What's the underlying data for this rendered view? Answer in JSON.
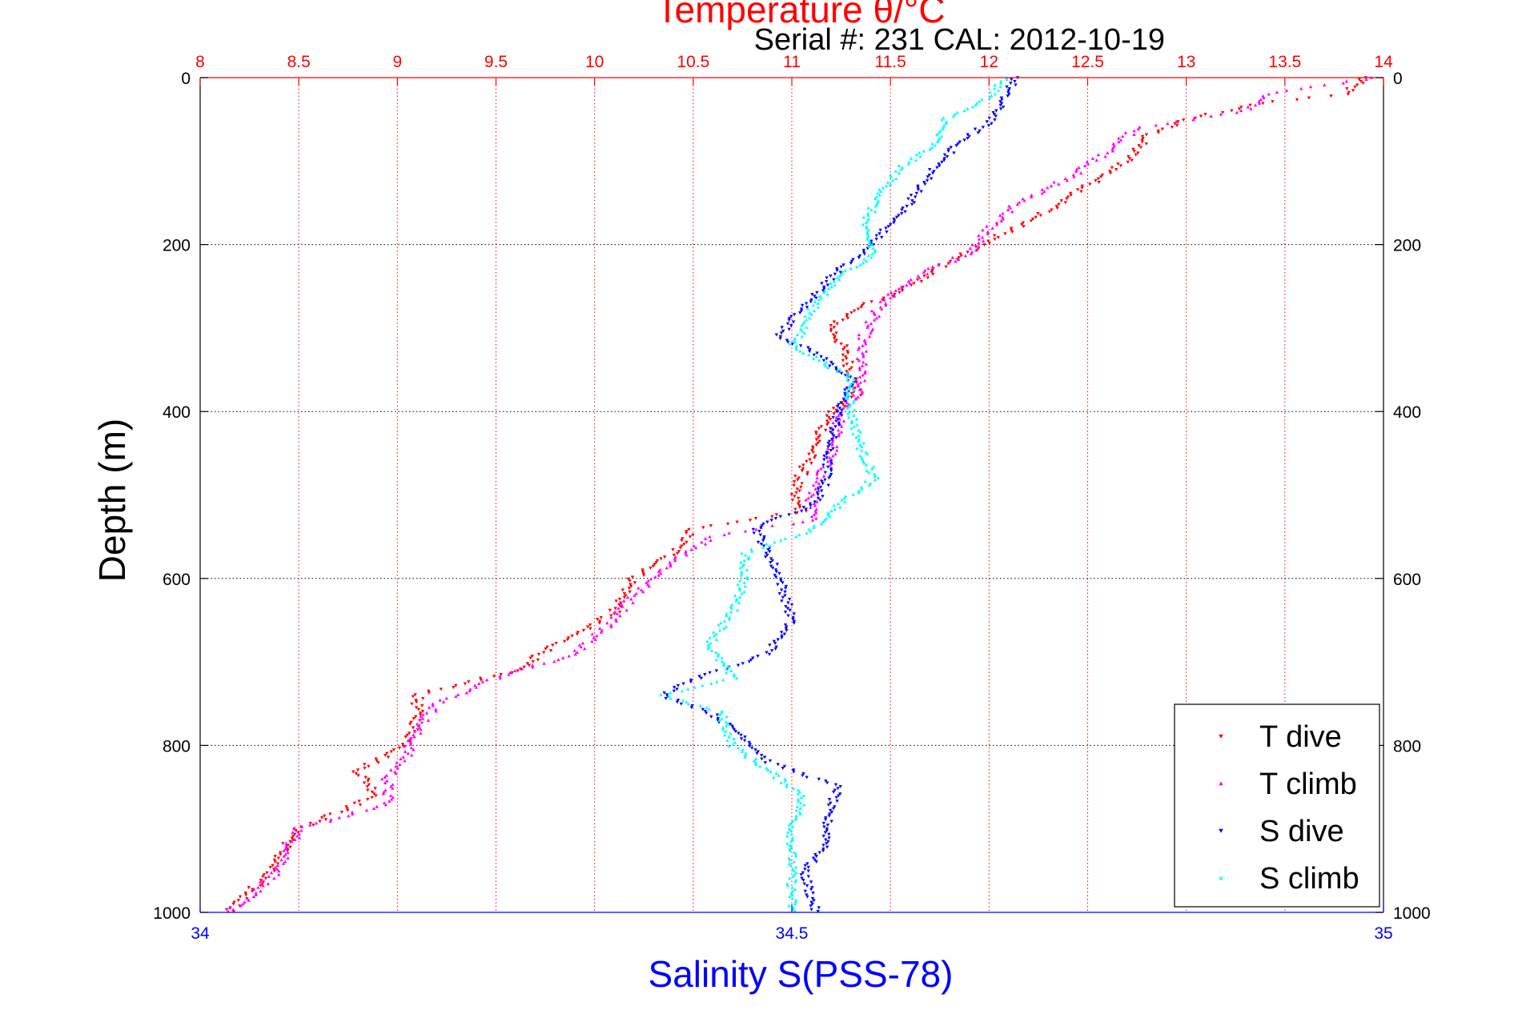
{
  "chart_data": {
    "type": "scatter",
    "title": "Temperature θ/°C",
    "subtitle": "Serial #: 231  CAL: 2012-10-19",
    "ylabel": "Depth (m)",
    "xlabel_bottom": "Salinity S(PSS-78)",
    "axes": {
      "temperature": {
        "range": [
          8,
          14
        ],
        "ticks": [
          "8",
          "8.5",
          "9",
          "9.5",
          "10",
          "10.5",
          "11",
          "11.5",
          "12",
          "12.5",
          "13",
          "13.5",
          "14"
        ],
        "color": "#ff0000",
        "position": "top"
      },
      "salinity": {
        "range": [
          34,
          35
        ],
        "ticks": [
          "34",
          "34.5",
          "35"
        ],
        "color": "#0000ff",
        "position": "bottom"
      },
      "depth": {
        "range": [
          0,
          1000
        ],
        "reversed": true,
        "ticks": [
          "0",
          "200",
          "400",
          "600",
          "800",
          "1000"
        ],
        "color": "#000000"
      }
    },
    "grid": true,
    "legend_position": "bottom-right",
    "series": [
      {
        "name": "T dive",
        "axis": "temperature",
        "color": "#ff0000",
        "marker": "triangle-down",
        "profile": [
          [
            0,
            13.9
          ],
          [
            20,
            13.8
          ],
          [
            30,
            13.4
          ],
          [
            50,
            13.0
          ],
          [
            70,
            12.8
          ],
          [
            100,
            12.7
          ],
          [
            130,
            12.5
          ],
          [
            160,
            12.3
          ],
          [
            190,
            12.05
          ],
          [
            220,
            11.8
          ],
          [
            250,
            11.6
          ],
          [
            280,
            11.3
          ],
          [
            300,
            11.2
          ],
          [
            320,
            11.25
          ],
          [
            350,
            11.3
          ],
          [
            380,
            11.33
          ],
          [
            400,
            11.2
          ],
          [
            450,
            11.1
          ],
          [
            500,
            11.0
          ],
          [
            520,
            11.05
          ],
          [
            540,
            10.5
          ],
          [
            570,
            10.4
          ],
          [
            600,
            10.2
          ],
          [
            640,
            10.1
          ],
          [
            680,
            9.8
          ],
          [
            710,
            9.6
          ],
          [
            740,
            9.1
          ],
          [
            770,
            9.1
          ],
          [
            800,
            9.05
          ],
          [
            830,
            8.8
          ],
          [
            860,
            8.9
          ],
          [
            900,
            8.5
          ],
          [
            950,
            8.35
          ],
          [
            1000,
            8.15
          ]
        ]
      },
      {
        "name": "T climb",
        "axis": "temperature",
        "color": "#ff00ff",
        "marker": "triangle-up",
        "profile": [
          [
            0,
            13.95
          ],
          [
            20,
            13.4
          ],
          [
            40,
            13.3
          ],
          [
            60,
            12.75
          ],
          [
            90,
            12.6
          ],
          [
            120,
            12.4
          ],
          [
            150,
            12.15
          ],
          [
            180,
            12.0
          ],
          [
            210,
            11.9
          ],
          [
            230,
            11.7
          ],
          [
            260,
            11.5
          ],
          [
            290,
            11.4
          ],
          [
            320,
            11.35
          ],
          [
            350,
            11.35
          ],
          [
            380,
            11.33
          ],
          [
            400,
            11.25
          ],
          [
            450,
            11.2
          ],
          [
            500,
            11.1
          ],
          [
            530,
            11.1
          ],
          [
            550,
            10.6
          ],
          [
            580,
            10.4
          ],
          [
            620,
            10.2
          ],
          [
            650,
            10.1
          ],
          [
            690,
            9.9
          ],
          [
            720,
            9.5
          ],
          [
            750,
            9.2
          ],
          [
            780,
            9.1
          ],
          [
            810,
            9.05
          ],
          [
            840,
            8.95
          ],
          [
            870,
            8.95
          ],
          [
            900,
            8.5
          ],
          [
            950,
            8.4
          ],
          [
            1000,
            8.15
          ]
        ]
      },
      {
        "name": "S dive",
        "axis": "salinity",
        "color": "#0000ff",
        "marker": "triangle-down",
        "profile": [
          [
            0,
            34.69
          ],
          [
            20,
            34.68
          ],
          [
            50,
            34.67
          ],
          [
            80,
            34.64
          ],
          [
            110,
            34.62
          ],
          [
            150,
            34.6
          ],
          [
            180,
            34.58
          ],
          [
            210,
            34.56
          ],
          [
            230,
            34.54
          ],
          [
            260,
            34.52
          ],
          [
            290,
            34.5
          ],
          [
            310,
            34.49
          ],
          [
            330,
            34.52
          ],
          [
            360,
            34.55
          ],
          [
            400,
            34.54
          ],
          [
            450,
            34.53
          ],
          [
            480,
            34.53
          ],
          [
            510,
            34.52
          ],
          [
            540,
            34.47
          ],
          [
            570,
            34.48
          ],
          [
            600,
            34.49
          ],
          [
            650,
            34.5
          ],
          [
            690,
            34.48
          ],
          [
            720,
            34.42
          ],
          [
            740,
            34.39
          ],
          [
            760,
            34.43
          ],
          [
            790,
            34.46
          ],
          [
            820,
            34.48
          ],
          [
            850,
            34.54
          ],
          [
            880,
            34.53
          ],
          [
            920,
            34.53
          ],
          [
            950,
            34.51
          ],
          [
            1000,
            34.52
          ]
        ]
      },
      {
        "name": "S climb",
        "axis": "salinity",
        "color": "#00ffff",
        "marker": "triangle-up",
        "profile": [
          [
            0,
            34.68
          ],
          [
            20,
            34.67
          ],
          [
            50,
            34.63
          ],
          [
            80,
            34.62
          ],
          [
            110,
            34.59
          ],
          [
            150,
            34.57
          ],
          [
            180,
            34.56
          ],
          [
            210,
            34.57
          ],
          [
            240,
            34.54
          ],
          [
            270,
            34.52
          ],
          [
            300,
            34.51
          ],
          [
            320,
            34.5
          ],
          [
            360,
            34.55
          ],
          [
            400,
            34.55
          ],
          [
            450,
            34.56
          ],
          [
            480,
            34.57
          ],
          [
            510,
            34.54
          ],
          [
            540,
            34.52
          ],
          [
            570,
            34.46
          ],
          [
            600,
            34.46
          ],
          [
            640,
            34.45
          ],
          [
            680,
            34.43
          ],
          [
            720,
            34.45
          ],
          [
            740,
            34.39
          ],
          [
            760,
            34.44
          ],
          [
            800,
            34.45
          ],
          [
            830,
            34.48
          ],
          [
            860,
            34.51
          ],
          [
            900,
            34.5
          ],
          [
            950,
            34.5
          ],
          [
            1000,
            34.5
          ]
        ]
      }
    ]
  }
}
